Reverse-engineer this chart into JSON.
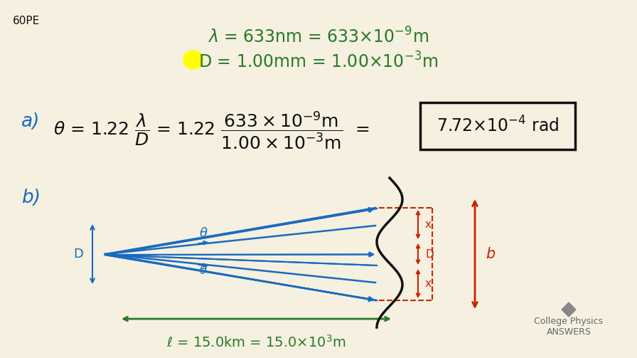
{
  "background_color": "#f5f0e0",
  "title_label": "60PE",
  "lambda_text": "λ = 633nm = 633×10⁻⁹m",
  "D_text": "D = 1.00mm = 1.00×10⁻³m",
  "part_a_text": "a)  θ = 1.22",
  "lambda_color": "#2a7a2a",
  "D_highlight_color": "#ffff00",
  "box_color": "#222222",
  "diagram_blue": "#1a6bbf",
  "diagram_red": "#cc2200",
  "diagram_green": "#2a7a2a",
  "logo_color": "#888888"
}
